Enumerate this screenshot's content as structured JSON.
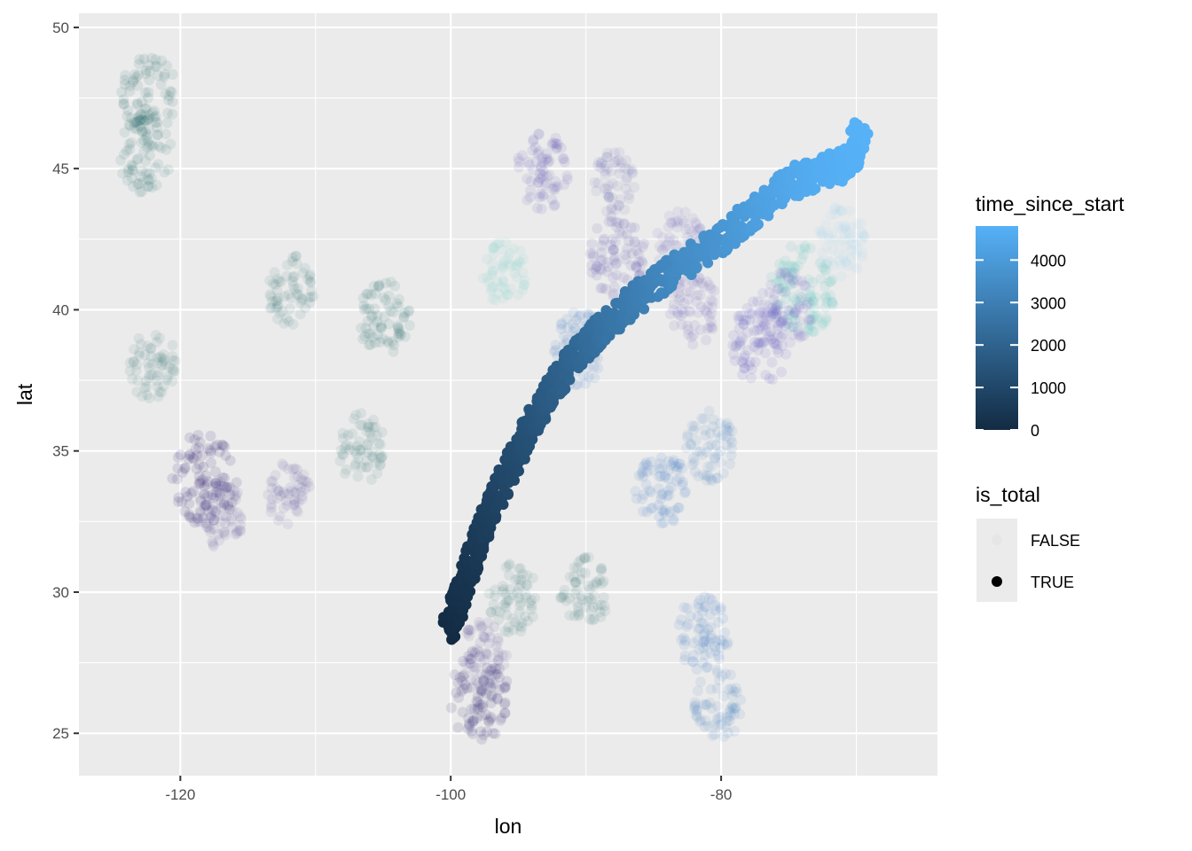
{
  "chart_data": {
    "type": "scatter",
    "xlabel": "lon",
    "ylabel": "lat",
    "xlim": [
      -127.5,
      -64.0
    ],
    "ylim": [
      23.5,
      50.5
    ],
    "x_ticks": [
      -120,
      -100,
      -80
    ],
    "x_tick_labels": [
      "-120",
      "-100",
      "-80"
    ],
    "y_ticks": [
      25,
      30,
      35,
      40,
      45,
      50
    ],
    "y_tick_labels": [
      "25",
      "30",
      "35",
      "40",
      "45",
      "50"
    ],
    "grid": true,
    "legend_position": "right",
    "panel_color": "#ebebeb",
    "color_scale": {
      "title": "time_since_start",
      "min": 0,
      "max": 4800,
      "low_color": "#132b43",
      "high_color": "#56b1f7",
      "breaks": [
        0,
        1000,
        2000,
        3000,
        4000
      ],
      "break_labels": [
        "0",
        "1000",
        "2000",
        "3000",
        "4000"
      ]
    },
    "shape_legend": {
      "title": "is_total",
      "entries": [
        {
          "label": "FALSE",
          "color": "#e6e6e6"
        },
        {
          "label": "TRUE",
          "color": "#000000"
        }
      ]
    },
    "totality_path": {
      "is_total": "TRUE",
      "points": [
        {
          "lon": -100.2,
          "lat": 28.6,
          "t": 0
        },
        {
          "lon": -99.2,
          "lat": 30.0,
          "t": 250
        },
        {
          "lon": -98.2,
          "lat": 31.5,
          "t": 500
        },
        {
          "lon": -97.0,
          "lat": 33.0,
          "t": 800
        },
        {
          "lon": -95.5,
          "lat": 34.5,
          "t": 1100
        },
        {
          "lon": -94.0,
          "lat": 36.0,
          "t": 1450
        },
        {
          "lon": -92.5,
          "lat": 37.2,
          "t": 1800
        },
        {
          "lon": -90.5,
          "lat": 38.5,
          "t": 2200
        },
        {
          "lon": -88.5,
          "lat": 39.5,
          "t": 2600
        },
        {
          "lon": -86.0,
          "lat": 40.5,
          "t": 3000
        },
        {
          "lon": -83.5,
          "lat": 41.4,
          "t": 3400
        },
        {
          "lon": -80.0,
          "lat": 42.5,
          "t": 3800
        },
        {
          "lon": -77.5,
          "lat": 43.5,
          "t": 4150
        },
        {
          "lon": -75.0,
          "lat": 44.5,
          "t": 4450
        },
        {
          "lon": -72.5,
          "lat": 44.9,
          "t": 4650
        },
        {
          "lon": -70.5,
          "lat": 45.2,
          "t": 4750
        },
        {
          "lon": -69.6,
          "lat": 46.5,
          "t": 4800
        }
      ]
    },
    "background_clusters": [
      {
        "lon": -122.3,
        "lat": 47.6,
        "color": "#2a6e6a",
        "weight": 0.6
      },
      {
        "lon": -122.6,
        "lat": 45.5,
        "color": "#2a6e6a",
        "weight": 0.5
      },
      {
        "lon": -122.0,
        "lat": 38.0,
        "color": "#2a6e6a",
        "weight": 0.4
      },
      {
        "lon": -118.2,
        "lat": 34.0,
        "color": "#2d1f6e",
        "weight": 0.8
      },
      {
        "lon": -117.0,
        "lat": 32.8,
        "color": "#4a3f8c",
        "weight": 0.4
      },
      {
        "lon": -112.0,
        "lat": 33.5,
        "color": "#4a3f8c",
        "weight": 0.3
      },
      {
        "lon": -111.9,
        "lat": 40.7,
        "color": "#2a6e6a",
        "weight": 0.4
      },
      {
        "lon": -104.9,
        "lat": 39.7,
        "color": "#2a6e6a",
        "weight": 0.5
      },
      {
        "lon": -106.6,
        "lat": 35.1,
        "color": "#2a6e6a",
        "weight": 0.4
      },
      {
        "lon": -97.9,
        "lat": 26.3,
        "color": "#2d1f6e",
        "weight": 0.7
      },
      {
        "lon": -97.5,
        "lat": 27.8,
        "color": "#4a3f8c",
        "weight": 0.4
      },
      {
        "lon": -93.2,
        "lat": 44.9,
        "color": "#5a4fb0",
        "weight": 0.5
      },
      {
        "lon": -87.7,
        "lat": 41.9,
        "color": "#5a4fb0",
        "weight": 0.6
      },
      {
        "lon": -83.0,
        "lat": 42.3,
        "color": "#6a60c0",
        "weight": 0.4
      },
      {
        "lon": -84.4,
        "lat": 33.7,
        "color": "#3b78c0",
        "weight": 0.5
      },
      {
        "lon": -80.8,
        "lat": 35.2,
        "color": "#3b78c0",
        "weight": 0.4
      },
      {
        "lon": -81.4,
        "lat": 28.5,
        "color": "#3b78c0",
        "weight": 0.5
      },
      {
        "lon": -80.2,
        "lat": 26.0,
        "color": "#3b78c0",
        "weight": 0.4
      },
      {
        "lon": -74.0,
        "lat": 40.7,
        "color": "#5cc9c0",
        "weight": 0.8
      },
      {
        "lon": -75.2,
        "lat": 40.0,
        "color": "#6a60c0",
        "weight": 0.5
      },
      {
        "lon": -77.0,
        "lat": 38.9,
        "color": "#6a60c0",
        "weight": 0.7
      },
      {
        "lon": -71.1,
        "lat": 42.4,
        "color": "#a0d8f0",
        "weight": 0.4
      },
      {
        "lon": -90.5,
        "lat": 38.6,
        "color": "#3b78c0",
        "weight": 0.5
      },
      {
        "lon": -96.0,
        "lat": 41.3,
        "color": "#5cc9c0",
        "weight": 0.3
      },
      {
        "lon": -95.4,
        "lat": 29.8,
        "color": "#2a6e6a",
        "weight": 0.4
      },
      {
        "lon": -90.1,
        "lat": 30.0,
        "color": "#2a6e6a",
        "weight": 0.4
      },
      {
        "lon": -82.0,
        "lat": 40.0,
        "color": "#5a4fb0",
        "weight": 0.4
      },
      {
        "lon": -88.0,
        "lat": 44.5,
        "color": "#5a4fb0",
        "weight": 0.3
      }
    ]
  }
}
